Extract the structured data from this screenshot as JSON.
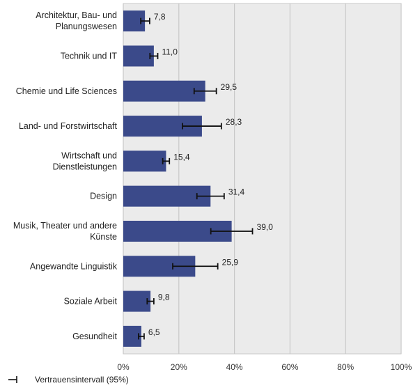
{
  "chart_data": {
    "type": "bar",
    "orientation": "horizontal",
    "categories": [
      "Architektur, Bau- und\nPlanungswesen",
      "Technik und IT",
      "Chemie und Life Sciences",
      "Land- und Forstwirtschaft",
      "Wirtschaft und\nDienstleistungen",
      "Design",
      "Musik, Theater und andere\nKünste",
      "Angewandte Linguistik",
      "Soziale Arbeit",
      "Gesundheit"
    ],
    "values": [
      7.8,
      11.0,
      29.5,
      28.3,
      15.4,
      31.4,
      39.0,
      25.9,
      9.8,
      6.5
    ],
    "value_labels": [
      "7,8",
      "11,0",
      "29,5",
      "28,3",
      "15,4",
      "31,4",
      "39,0",
      "25,9",
      "9,8",
      "6,5"
    ],
    "ci_low": [
      6.3,
      9.6,
      25.5,
      21.3,
      14.2,
      26.5,
      31.5,
      17.8,
      8.6,
      5.5
    ],
    "ci_high": [
      9.5,
      12.4,
      33.5,
      35.3,
      16.6,
      36.3,
      46.5,
      34.0,
      11.0,
      7.5
    ],
    "xlim": [
      0,
      100
    ],
    "x_ticks": [
      0,
      20,
      40,
      60,
      80,
      100
    ],
    "x_tick_labels": [
      "0%",
      "20%",
      "40%",
      "60%",
      "80%",
      "100%"
    ],
    "grid": true,
    "legend_position": "bottom-left",
    "legend": {
      "label": "Vertrauensintervall (95%)"
    },
    "colors": {
      "bar": "#3B4A8A",
      "plot_bg": "#EBEBEB",
      "grid": "#C8C8C8",
      "errorbar": "#111111"
    }
  }
}
